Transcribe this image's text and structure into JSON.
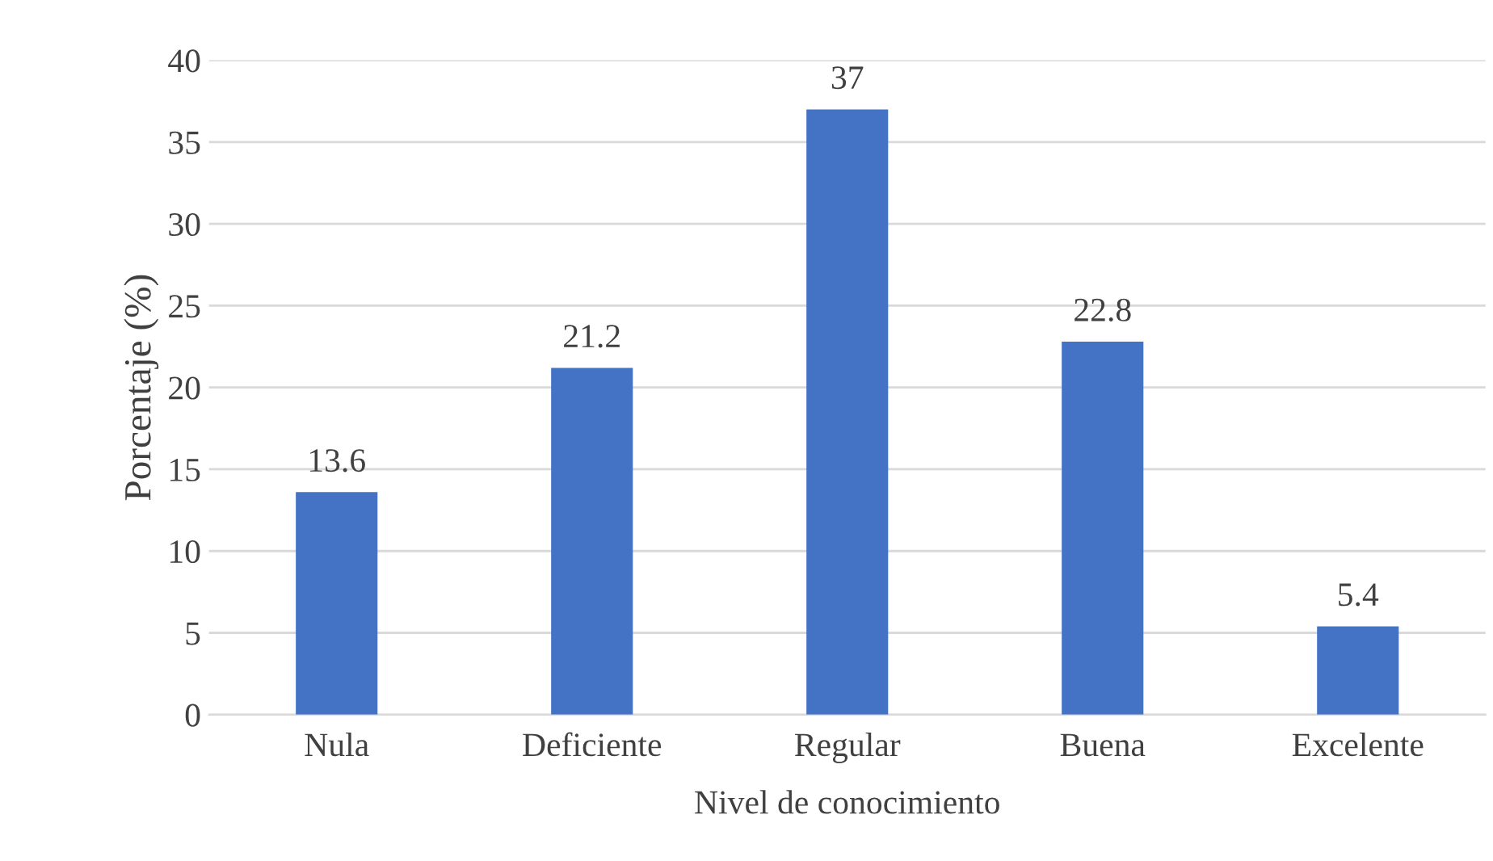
{
  "chart_data": {
    "type": "bar",
    "xlabel": "Nivel de conocimiento",
    "ylabel": "Porcentaje (%)",
    "categories": [
      "Nula",
      "Deficiente",
      "Regular",
      "Buena",
      "Excelente"
    ],
    "values": [
      13.6,
      21.2,
      37,
      22.8,
      5.4
    ],
    "color": "#4472c4",
    "ylim": [
      0,
      40
    ],
    "yticks": [
      0,
      5,
      10,
      15,
      20,
      25,
      30,
      35,
      40
    ],
    "grid": "y",
    "data_labels": true
  }
}
